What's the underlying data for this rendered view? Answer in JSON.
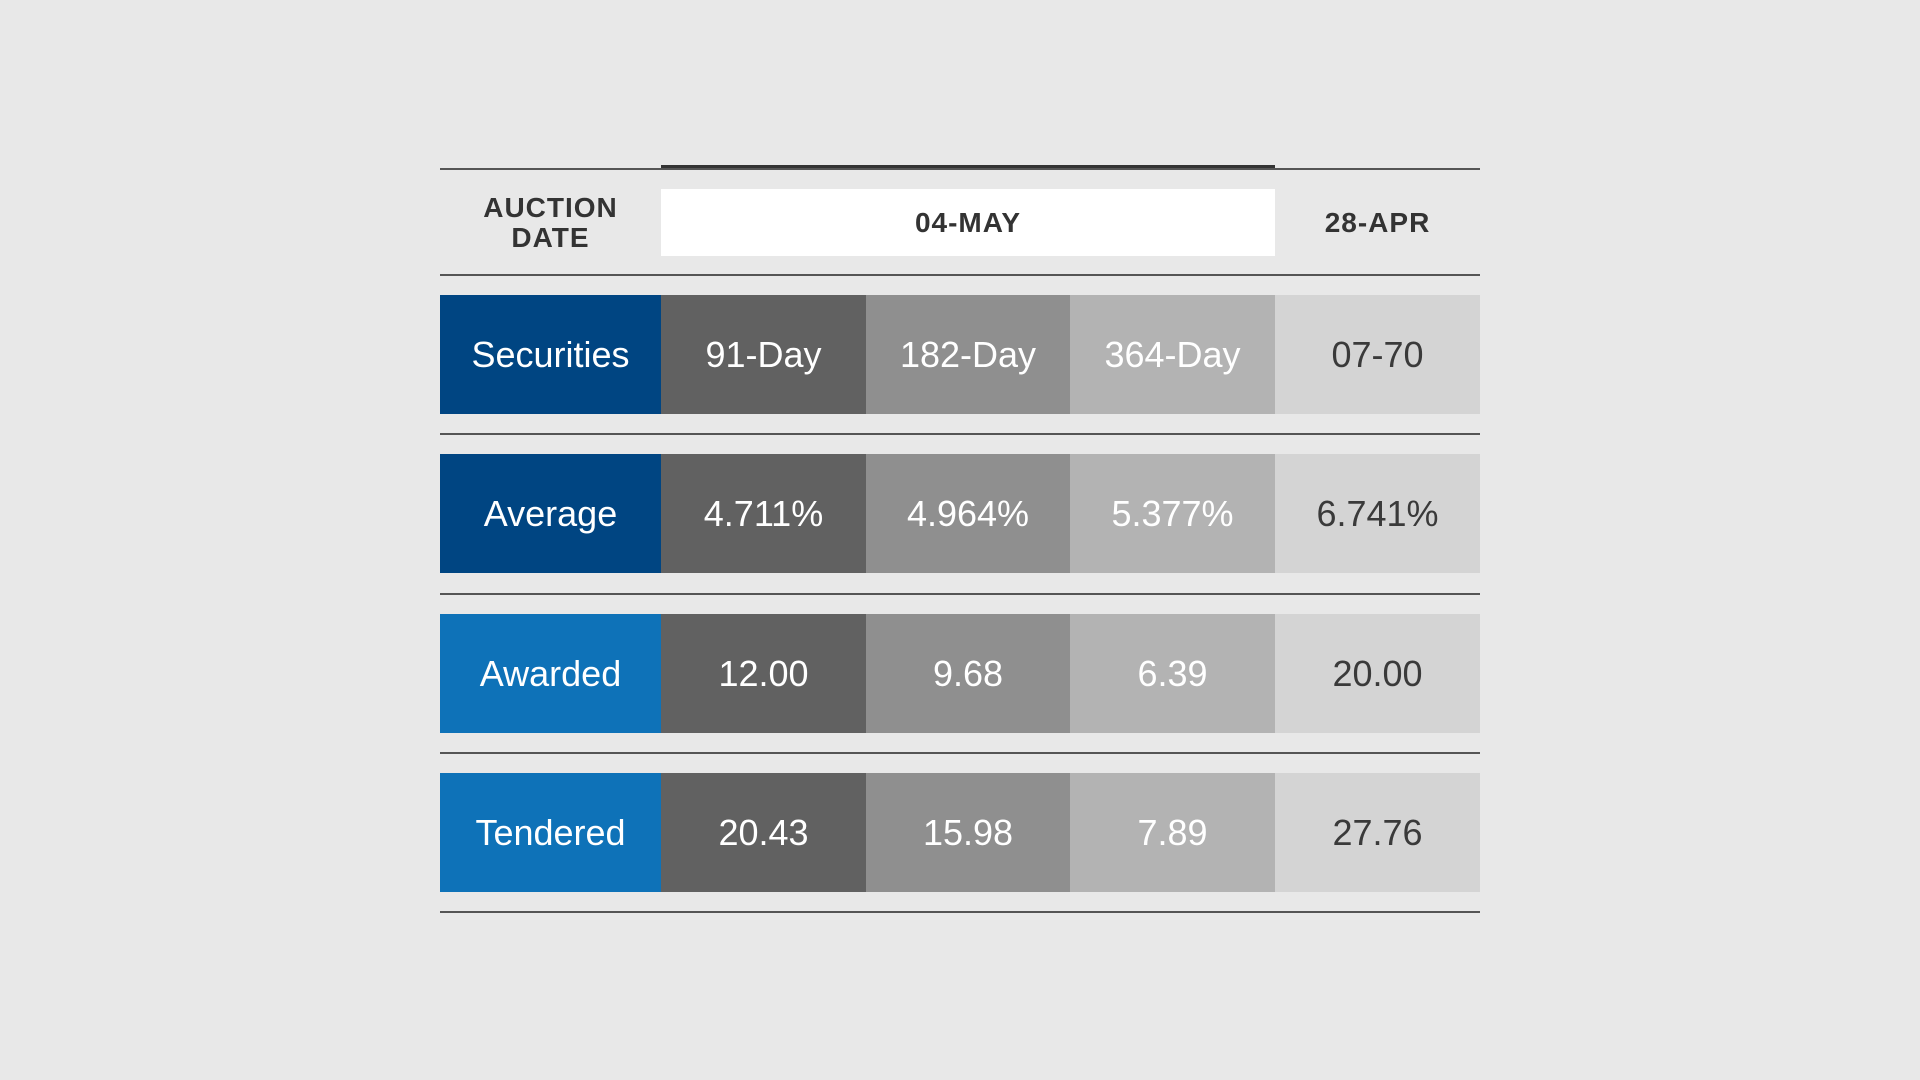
{
  "chart_data": {
    "type": "table",
    "header": {
      "label": "AUCTION DATE",
      "label_lines": [
        "AUCTION",
        "DATE"
      ],
      "groups": [
        "04-MAY",
        "28-APR"
      ]
    },
    "rows": [
      {
        "label": "Securities",
        "values": [
          "91-Day",
          "182-Day",
          "364-Day",
          "07-70"
        ],
        "label_color": "#004582"
      },
      {
        "label": "Average",
        "values": [
          "4.711%",
          "4.964%",
          "5.377%",
          "6.741%"
        ],
        "label_color": "#004582"
      },
      {
        "label": "Awarded",
        "values": [
          "12.00",
          "9.68",
          "6.39",
          "20.00"
        ],
        "label_color": "#0e72b8"
      },
      {
        "label": "Tendered",
        "values": [
          "20.43",
          "15.98",
          "7.89",
          "27.76"
        ],
        "label_color": "#0e72b8"
      }
    ]
  },
  "colors": {
    "background": "#e8e8e8",
    "dark_blue": "#004582",
    "light_blue": "#0e72b8",
    "col_91": "#616161",
    "col_182": "#8f8f8f",
    "col_364": "#b3b3b3",
    "col_prev": "#d4d4d4"
  }
}
